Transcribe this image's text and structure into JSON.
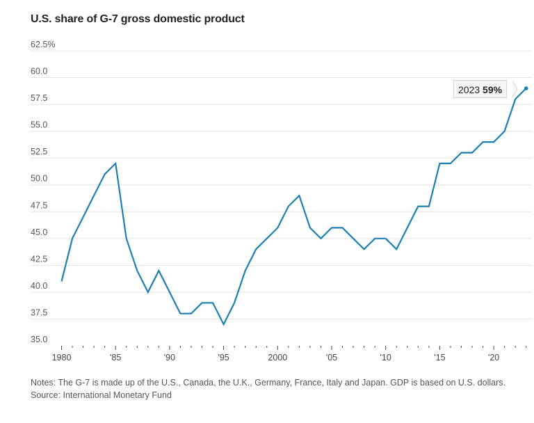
{
  "chart_data": {
    "type": "line",
    "title": "U.S. share of G-7 gross domestic product",
    "xlabel": "",
    "ylabel": "",
    "ylim": [
      35,
      62.5
    ],
    "xlim": [
      1980,
      2023
    ],
    "grid": true,
    "y_ticks": [
      "62.5%",
      "60.0",
      "57.5",
      "55.0",
      "52.5",
      "50.0",
      "47.5",
      "45.0",
      "42.5",
      "40.0",
      "37.5",
      "35.0"
    ],
    "y_tick_values": [
      62.5,
      60,
      57.5,
      55,
      52.5,
      50,
      47.5,
      45,
      42.5,
      40,
      37.5,
      35
    ],
    "x_tick_labels": [
      "1980",
      "'85",
      "'90",
      "'95",
      "2000",
      "'05",
      "'10",
      "'15",
      "'20"
    ],
    "x_tick_values": [
      1980,
      1985,
      1990,
      1995,
      2000,
      2005,
      2010,
      2015,
      2020
    ],
    "series": [
      {
        "name": "U.S. share of G-7 GDP",
        "color": "#1b7fb0",
        "x": [
          1980,
          1981,
          1982,
          1983,
          1984,
          1985,
          1986,
          1987,
          1988,
          1989,
          1990,
          1991,
          1992,
          1993,
          1994,
          1995,
          1996,
          1997,
          1998,
          1999,
          2000,
          2001,
          2002,
          2003,
          2004,
          2005,
          2006,
          2007,
          2008,
          2009,
          2010,
          2011,
          2012,
          2013,
          2014,
          2015,
          2016,
          2017,
          2018,
          2019,
          2020,
          2021,
          2022,
          2023
        ],
        "values": [
          41,
          45,
          47,
          49,
          51,
          52,
          45,
          42,
          40,
          42,
          40,
          38,
          38,
          39,
          39,
          37,
          39,
          42,
          44,
          45,
          46,
          48,
          49,
          46,
          45,
          46,
          46,
          45,
          44,
          45,
          45,
          44,
          46,
          48,
          48,
          52,
          52,
          53,
          53,
          54,
          54,
          55,
          58,
          59
        ]
      }
    ],
    "annotation": {
      "year": "2023",
      "value": "59%"
    },
    "legend": "none"
  },
  "notes": "Notes: The G-7 is made up of the U.S., Canada, the U.K., Germany, France, Italy and Japan. GDP is based on U.S. dollars.",
  "source": "Source: International Monetary Fund"
}
